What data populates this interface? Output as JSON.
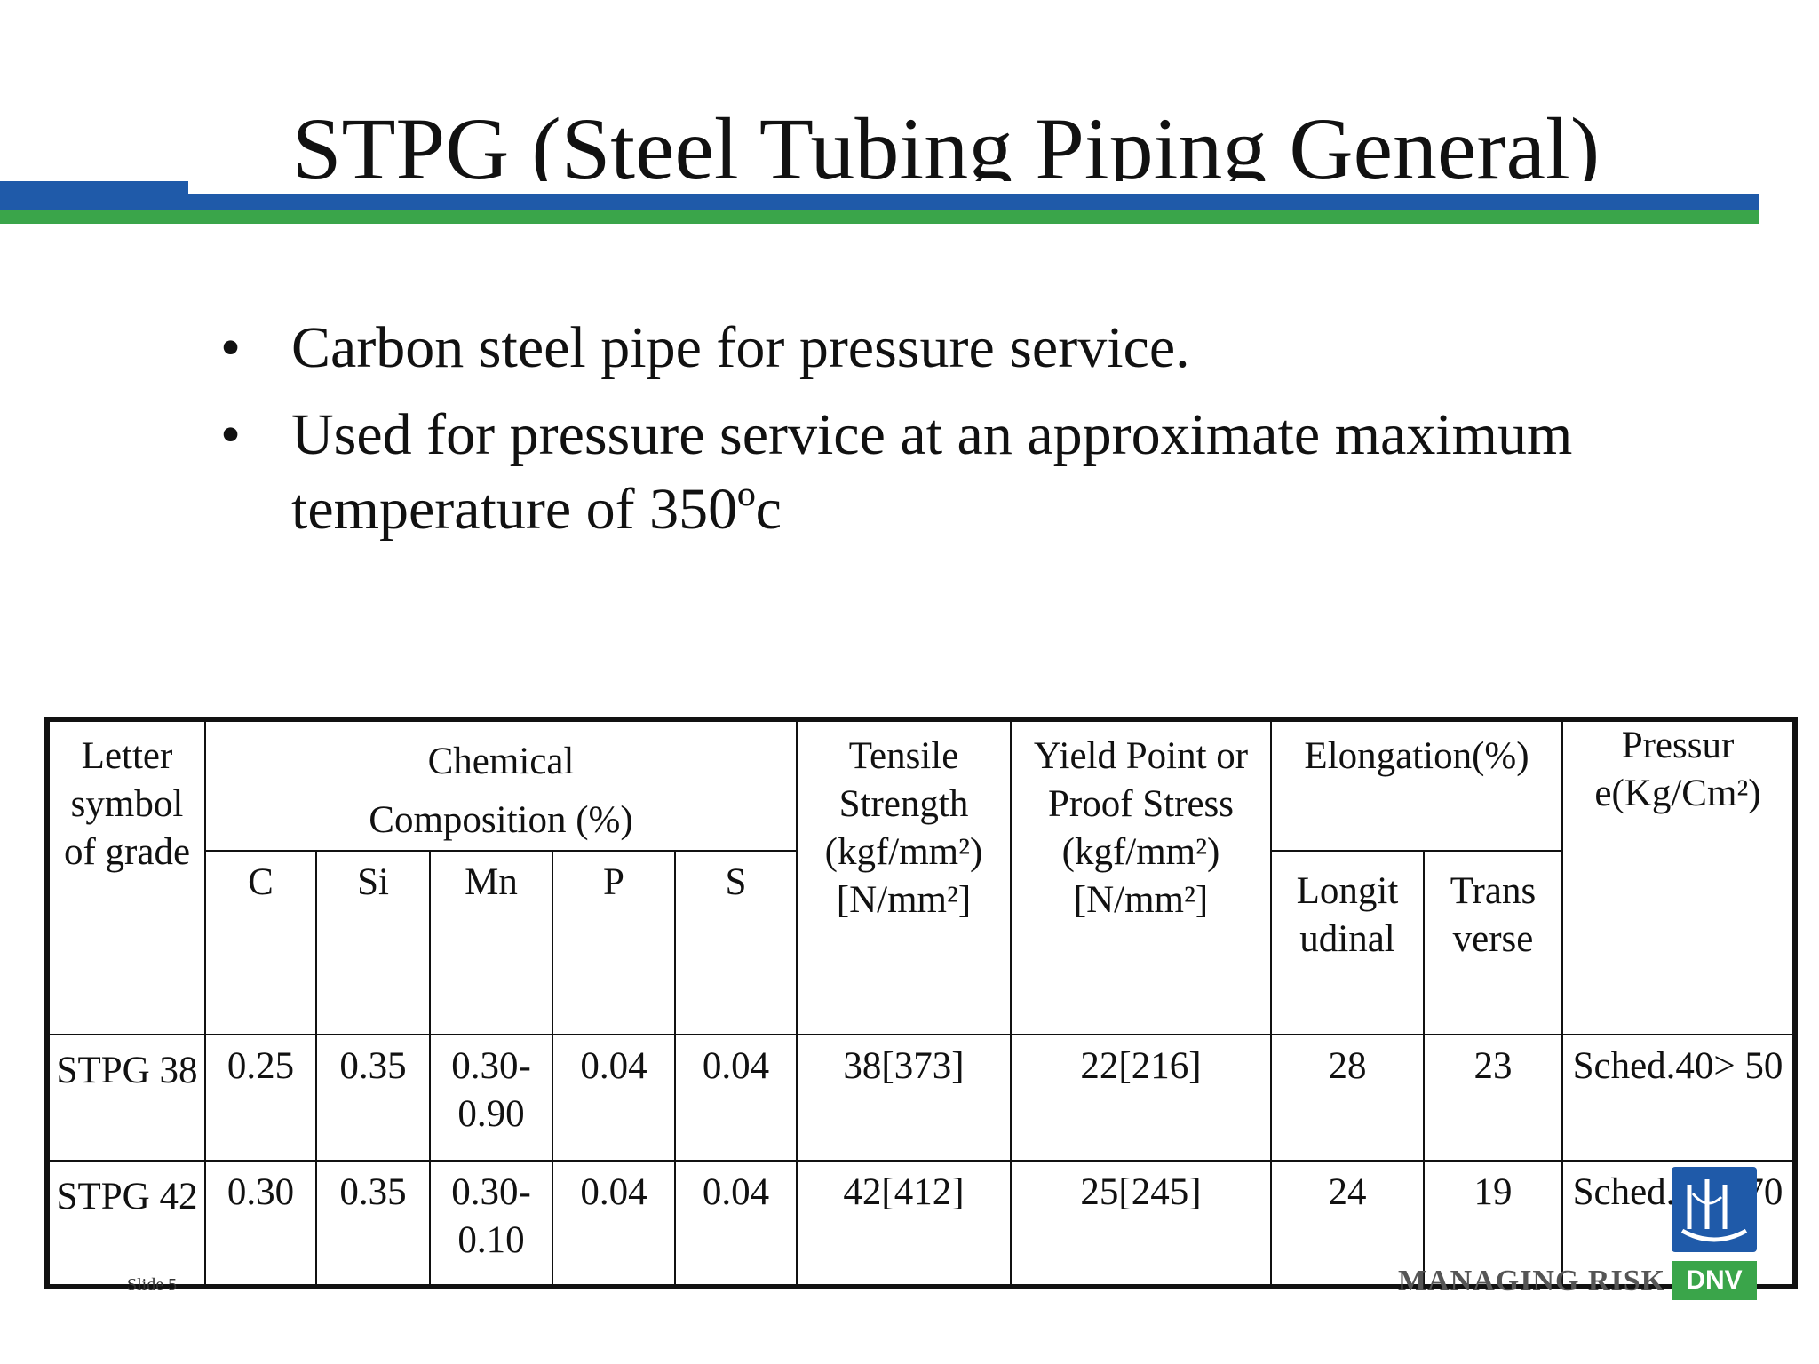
{
  "slide": {
    "title": "STPG (Steel Tubing Piping General)",
    "bullets": [
      "Carbon steel pipe for pressure service.",
      "Used for pressure service at an approximate maximum temperature of 350ºc"
    ],
    "bullet_symbol": "•",
    "slide_label": "Slide 5",
    "colors": {
      "accent_blue": "#1f5aa9",
      "accent_green": "#3aa54a"
    }
  },
  "table": {
    "headers": {
      "letter_symbol": "Letter symbol of grade",
      "chemical": "Chemical Composition (%)",
      "tensile": "Tensile Strength (kgf/mm²) [N/mm²]",
      "yield": "Yield Point or Proof Stress (kgf/mm²) [N/mm²]",
      "elongation": "Elongation(%)",
      "longitudinal": "Longit udinal",
      "transverse": "Trans verse",
      "pressure": "Pressur e(Kg/Cm²)",
      "c": "C",
      "si": "Si",
      "mn": "Mn",
      "p": "P",
      "s": "S"
    },
    "rows": [
      {
        "grade": "STPG 38",
        "c": "0.25",
        "si": "0.35",
        "mn": "0.30- 0.90",
        "p": "0.04",
        "s": "0.04",
        "tensile": "38[373]",
        "yield": "22[216]",
        "longitudinal": "28",
        "transverse": "23",
        "pressure": "Sched.40> 50"
      },
      {
        "grade": "STPG 42",
        "c": "0.30",
        "si": "0.35",
        "mn": "0.30- 0.10",
        "p": "0.04",
        "s": "0.04",
        "tensile": "42[412]",
        "yield": "25[245]",
        "longitudinal": "24",
        "transverse": "19",
        "pressure": "Sched.80> 70"
      }
    ]
  },
  "logo": {
    "tagline": "MANAGING RISK",
    "brand": "DNV",
    "icon": "dnv-ship-logo-icon"
  }
}
